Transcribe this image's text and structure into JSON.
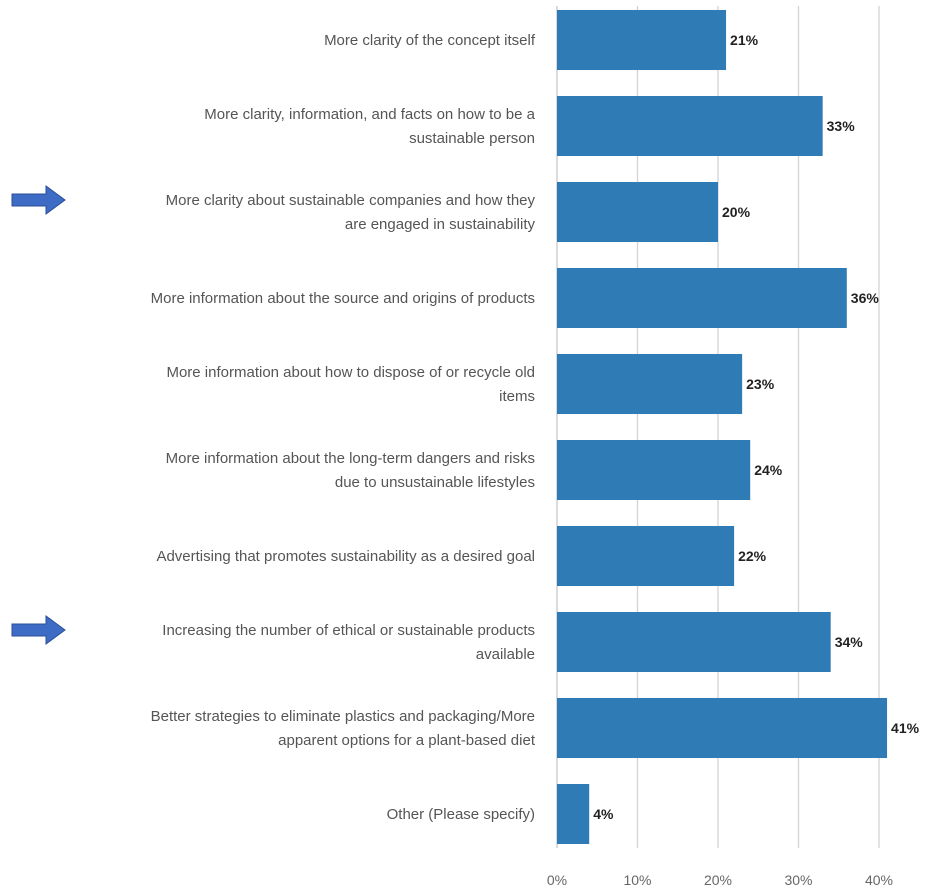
{
  "chart_data": {
    "type": "bar",
    "orientation": "horizontal",
    "categories": [
      [
        "More clarity of the concept itself"
      ],
      [
        "More clarity, information, and facts on how to be a",
        "sustainable person"
      ],
      [
        "More clarity about sustainable companies and how they",
        "are engaged in sustainability"
      ],
      [
        "More information about the source and origins of products"
      ],
      [
        "More information about how to dispose of or recycle old",
        "items"
      ],
      [
        "More information about the long-term dangers and risks",
        "due to unsustainable lifestyles"
      ],
      [
        "Advertising that promotes sustainability as a desired goal"
      ],
      [
        "Increasing the number of ethical or sustainable products",
        "available"
      ],
      [
        "Better strategies to eliminate plastics and packaging/More",
        "apparent options for a plant-based diet"
      ],
      [
        "Other (Please specify)"
      ]
    ],
    "values": [
      21,
      33,
      20,
      36,
      23,
      24,
      22,
      34,
      41,
      4
    ],
    "value_labels": [
      "21%",
      "33%",
      "20%",
      "36%",
      "23%",
      "24%",
      "22%",
      "34%",
      "41%",
      "4%"
    ],
    "highlighted": [
      false,
      false,
      true,
      false,
      false,
      false,
      false,
      true,
      false,
      false
    ],
    "xticks": [
      0,
      10,
      20,
      30,
      40
    ],
    "xtick_labels": [
      "0%",
      "10%",
      "20%",
      "30%",
      "40%"
    ],
    "xlim": [
      0,
      41
    ],
    "grid": true,
    "colors": {
      "bar": "#2e7bb6",
      "arrow": "#3e6bc4",
      "grid": "#d4d4d4"
    }
  }
}
